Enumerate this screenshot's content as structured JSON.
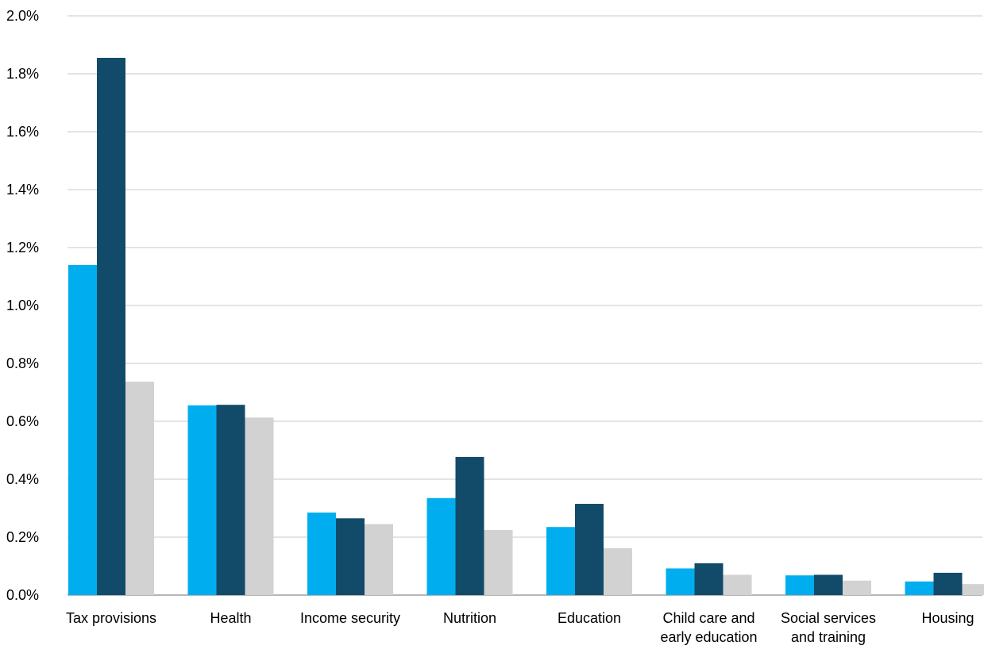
{
  "chart_data": {
    "type": "bar",
    "title": "",
    "xlabel": "",
    "ylabel": "",
    "categories": [
      [
        "Tax provisions"
      ],
      [
        "Health"
      ],
      [
        "Income security"
      ],
      [
        "Nutrition"
      ],
      [
        "Education"
      ],
      [
        "Child care and",
        "early education"
      ],
      [
        "Social services",
        "and training"
      ],
      [
        "Housing"
      ]
    ],
    "series": [
      {
        "values": [
          1.14,
          0.655,
          0.285,
          0.335,
          0.235,
          0.092,
          0.068,
          0.047
        ],
        "color": "#00aeef"
      },
      {
        "values": [
          1.855,
          0.657,
          0.265,
          0.477,
          0.315,
          0.11,
          0.07,
          0.077
        ],
        "color": "#124b69"
      },
      {
        "values": [
          0.737,
          0.613,
          0.245,
          0.225,
          0.162,
          0.07,
          0.05,
          0.038
        ],
        "color": "#d2d2d2"
      }
    ],
    "ylim": [
      0,
      2.0
    ],
    "yticks": [
      0,
      0.2,
      0.4,
      0.6,
      0.8,
      1.0,
      1.2,
      1.4,
      1.6,
      1.8,
      2.0
    ],
    "ytick_labels": [
      "0.0%",
      "0.2%",
      "0.4%",
      "0.6%",
      "0.8%",
      "1.0%",
      "1.2%",
      "1.4%",
      "1.6%",
      "1.8%",
      "2.0%"
    ],
    "grid": true,
    "legend": "none",
    "gridline_color": "#c8c8c8"
  }
}
